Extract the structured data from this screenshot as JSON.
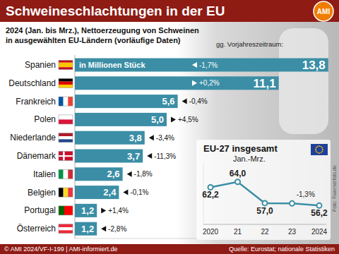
{
  "chart_data": [
    {
      "type": "bar",
      "orientation": "horizontal",
      "title": "Schweineschlachtungen in der EU",
      "subtitle": [
        "2024 (Jan. bis Mrz.), Nettoerzeugung von Schweinen",
        "in ausgewählten EU-Ländern (vorläufige Daten)"
      ],
      "xlabel": "in Millionen Stück",
      "annotations": [
        "gg. Vorjahreszeitraum:"
      ],
      "categories": [
        "Spanien",
        "Deutschland",
        "Frankreich",
        "Polen",
        "Niederlande",
        "Dänemark",
        "Italien",
        "Belgien",
        "Portugal",
        "Österreich"
      ],
      "values": [
        13.8,
        11.1,
        5.6,
        5.0,
        3.8,
        3.7,
        2.6,
        2.4,
        1.2,
        1.2
      ],
      "value_labels": [
        "13,8",
        "11,1",
        "5,6",
        "5,0",
        "3,8",
        "3,7",
        "2,6",
        "2,4",
        "1,2",
        "1,2"
      ],
      "changes": [
        -1.7,
        0.2,
        -0.4,
        4.5,
        -3.4,
        -11.3,
        -1.8,
        -0.1,
        1.4,
        -2.8
      ],
      "change_labels": [
        "-1,7%",
        "+0,2%",
        "-0,4%",
        "+4,5%",
        "-3,4%",
        "-11,3%",
        "-1,8%",
        "-0,1%",
        "+1,4%",
        "-2,8%"
      ],
      "color": "#3b8ea5",
      "xlim": [
        0,
        14
      ],
      "tick_labels": false,
      "data_labels": true,
      "grid": false
    },
    {
      "type": "line",
      "title": "EU-27 insgesamt",
      "subtitle": "Jan.-Mrz.",
      "categories": [
        "2020",
        "21",
        "22",
        "23",
        "2024"
      ],
      "values": [
        62.2,
        64,
        57,
        56.9,
        56.2
      ],
      "value_labels": [
        "62,2",
        "64,0",
        "57,0",
        null,
        "56,2"
      ],
      "annotations": [
        "-1,3%"
      ],
      "color": "#3b8ea5",
      "ylim": [
        50,
        70
      ],
      "tick_labels": "x",
      "marker": "circle",
      "data_labels": true,
      "grid": false
    }
  ],
  "logo": "AMI",
  "footer": {
    "copyright": "© AMI 2024/VF-I-199 | AMI-informiert.de",
    "source": "Quelle: Eurostat; nationale Statistiken",
    "photo": "Foto: ©wernerfoto.de"
  }
}
